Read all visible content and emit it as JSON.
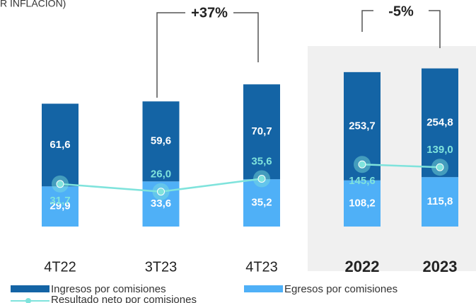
{
  "header": {
    "title": "R INFLACIÓN)"
  },
  "chart_data": [
    {
      "type": "bar",
      "categories": [
        "4T22",
        "3T23",
        "4T23"
      ],
      "ylim": [
        0,
        116
      ],
      "series": [
        {
          "name": "Ingresos por comisiones",
          "type": "bar",
          "color": "#1464a5",
          "values": [
            61.6,
            59.6,
            70.7
          ],
          "value_labels": [
            "61,6",
            "59,6",
            "70,7"
          ]
        },
        {
          "name": "Egresos por comisiones",
          "type": "bar",
          "color": "#4fb0f7",
          "values": [
            29.9,
            33.6,
            35.2
          ],
          "value_labels": [
            "29,9",
            "33,6",
            "35,2"
          ]
        },
        {
          "name": "Resultado neto por comisiones",
          "type": "line",
          "color": "#7fe3dc",
          "values": [
            31.7,
            26.0,
            35.6
          ],
          "value_labels": [
            "31,7",
            "26,0",
            "35,6"
          ]
        }
      ],
      "annotations": [
        {
          "text": "+37%"
        }
      ]
    },
    {
      "type": "bar",
      "categories": [
        "2022",
        "2023"
      ],
      "ylim": [
        0,
        365
      ],
      "series": [
        {
          "name": "Ingresos por comisiones",
          "type": "bar",
          "color": "#1464a5",
          "values": [
            253.7,
            254.8
          ],
          "value_labels": [
            "253,7",
            "254,8"
          ]
        },
        {
          "name": "Egresos por comisiones",
          "type": "bar",
          "color": "#4fb0f7",
          "values": [
            108.2,
            115.8
          ],
          "value_labels": [
            "108,2",
            "115,8"
          ]
        },
        {
          "name": "Resultado neto por comisiones",
          "type": "line",
          "color": "#7fe3dc",
          "values": [
            145.6,
            139.0
          ],
          "value_labels": [
            "145,6",
            "139,0"
          ]
        }
      ],
      "annotations": [
        {
          "text": "-5%"
        }
      ]
    }
  ]
}
